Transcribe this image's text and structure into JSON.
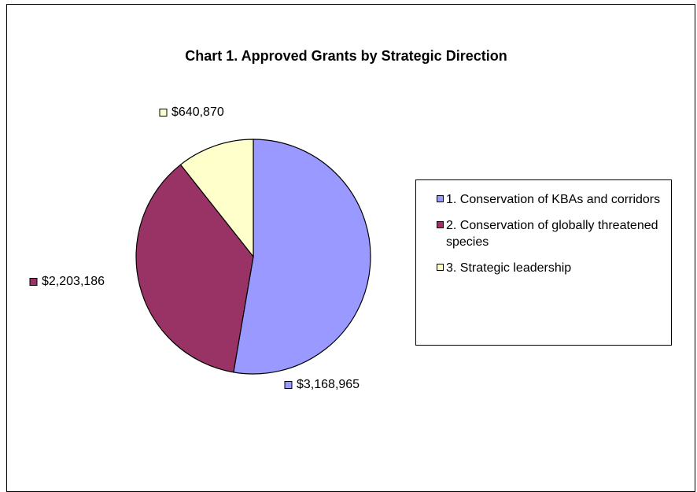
{
  "chart_data": {
    "type": "pie",
    "title": "Chart 1. Approved Grants by Strategic Direction",
    "categories": [
      "1. Conservation of KBAs and corridors",
      "2. Conservation of globally threatened species",
      "3. Strategic leadership"
    ],
    "values": [
      3168965,
      2203186,
      640870
    ],
    "value_labels": [
      "$3,168,965",
      "$2,203,186",
      "$640,870"
    ],
    "colors": [
      "#9999ff",
      "#993366",
      "#ffffcc"
    ],
    "legend": "right"
  }
}
